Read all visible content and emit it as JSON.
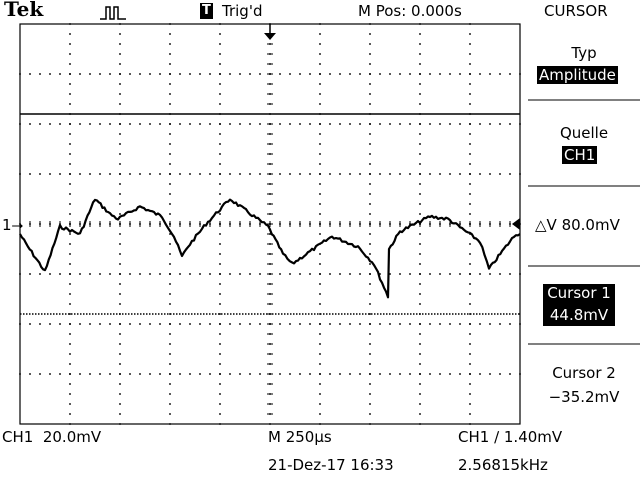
{
  "header": {
    "brand": "Tek",
    "trigger_state": "Trig'd",
    "trigger_badge": "T",
    "m_pos": "M Pos: 0.000s",
    "menu_title": "CURSOR"
  },
  "menu": {
    "typ_label": "Typ",
    "typ_value": "Amplitude",
    "quelle_label": "Quelle",
    "quelle_value": "CH1",
    "delta": "△V 80.0mV",
    "cursor1_label": "Cursor 1",
    "cursor1_value": "44.8mV",
    "cursor2_label": "Cursor 2",
    "cursor2_value": "−35.2mV"
  },
  "footer": {
    "ch1_scale": "CH1  20.0mV",
    "timebase": "M 250µs",
    "trigger": "CH1 ∕ 1.40mV",
    "date": "21-Dez-17 16:33",
    "frequency": "2.56815kHz"
  },
  "channel_marker": "1",
  "trace": {
    "channel": "CH1",
    "volts_per_div": 20.0,
    "time_per_div_us": 250,
    "points": [
      [
        0,
        -4
      ],
      [
        0.3,
        -8
      ],
      [
        1.25,
        -19
      ],
      [
        2,
        -1
      ],
      [
        3.0,
        -4
      ],
      [
        3.75,
        10
      ],
      [
        4.5,
        4
      ],
      [
        4.9,
        2
      ],
      [
        6.0,
        7
      ],
      [
        7.1,
        3
      ],
      [
        7.7,
        -5
      ],
      [
        8.1,
        -13
      ],
      [
        8.4,
        -9
      ],
      [
        9.3,
        0
      ],
      [
        10.5,
        10
      ],
      [
        11.7,
        3
      ],
      [
        12.4,
        -1
      ],
      [
        13.15,
        -12
      ],
      [
        13.6,
        -16
      ],
      [
        14.5,
        -11
      ],
      [
        15.6,
        -5
      ],
      [
        16.9,
        -9
      ],
      [
        17.7,
        -16
      ],
      [
        18.4,
        -29
      ],
      [
        18.45,
        -10
      ],
      [
        19.0,
        -3
      ],
      [
        20.5,
        3
      ],
      [
        21.4,
        2
      ],
      [
        22.3,
        -3
      ],
      [
        23.0,
        -7
      ],
      [
        23.45,
        -18
      ],
      [
        24.2,
        -10
      ],
      [
        24.8,
        -4
      ],
      [
        25,
        -4
      ]
    ],
    "cursor1_mv": 44.8,
    "cursor2_mv": -35.2
  }
}
